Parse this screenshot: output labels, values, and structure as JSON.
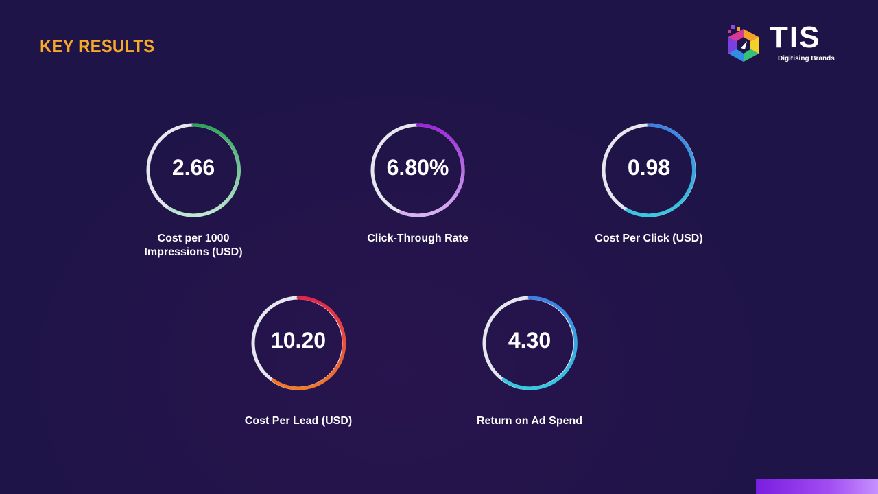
{
  "title": "KEY RESULTS",
  "logo": {
    "name": "TIS",
    "tagline": "Digitising Brands"
  },
  "metrics": [
    {
      "value": "2.66",
      "label": "Cost per 1000\nImpressions (USD)",
      "ring_colors": [
        "#2fa35a",
        "#bfe8d4"
      ]
    },
    {
      "value": "6.80%",
      "label": "Click-Through Rate",
      "ring_colors": [
        "#9b27d8",
        "#d7b3f3"
      ]
    },
    {
      "value": "0.98",
      "label": "Cost Per Click (USD)",
      "ring_colors": [
        "#3f7fe3",
        "#36c9e0"
      ]
    },
    {
      "value": "10.20",
      "label": "Cost Per Lead (USD)",
      "ring_colors": [
        "#e0264a",
        "#f07a2a"
      ]
    },
    {
      "value": "4.30",
      "label": "Return on Ad Spend",
      "ring_colors": [
        "#3f7fe3",
        "#36c9e0"
      ]
    }
  ]
}
